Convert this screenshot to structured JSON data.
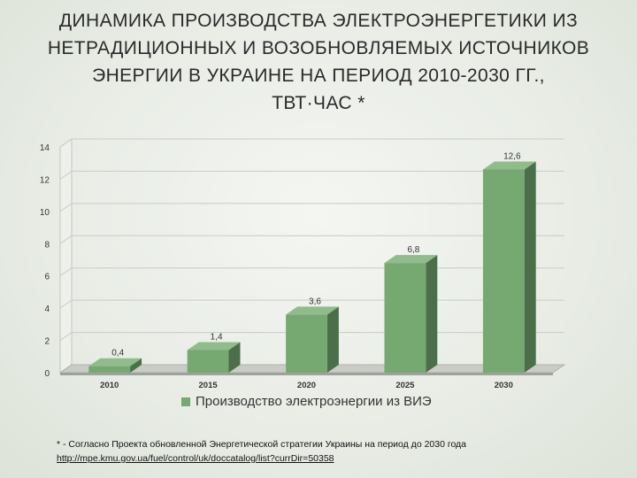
{
  "title_lines": [
    "ДИНАМИКА ПРОИЗВОДСТВА ЭЛЕКТРОЭНЕРГЕТИКИ ИЗ",
    "НЕТРАДИЦИОННЫХ И ВОЗОБНОВЛЯЕМЫХ ИСТОЧНИКОВ",
    "ЭНЕРГИИ В  УКРАИНЕ  НА ПЕРИОД 2010-2030 ГГ.,",
    "ТВТ·ЧАС  *"
  ],
  "footnote": {
    "text": "* - Согласно  Проекта обновленной Энергетической стратегии Украины на период до 2030 года",
    "url": "http://mpe.kmu.gov.ua/fuel/control/uk/doccatalog/list?currDir=50358"
  },
  "colors": {
    "bar_front": "#76a872",
    "bar_side": "#4b6f48",
    "bar_top": "#8fbc8a",
    "floor": "#9fa29c",
    "grid": "#c9ccc6",
    "axis_text": "#333333"
  },
  "chart_data": {
    "type": "bar",
    "categories": [
      "2010",
      "2015",
      "2020",
      "2025",
      "2030"
    ],
    "series": [
      {
        "name": "Производство электроэнергии из ВИЭ",
        "values": [
          0.4,
          1.4,
          3.6,
          6.8,
          12.6
        ]
      }
    ],
    "data_labels": [
      "0,4",
      "1,4",
      "3,6",
      "6,8",
      "12,6"
    ],
    "yticks": [
      "0",
      "2",
      "4",
      "6",
      "8",
      "10",
      "12",
      "14"
    ],
    "ylim": [
      0,
      14
    ],
    "grid": true,
    "legend_position": "bottom",
    "style": "3d"
  }
}
